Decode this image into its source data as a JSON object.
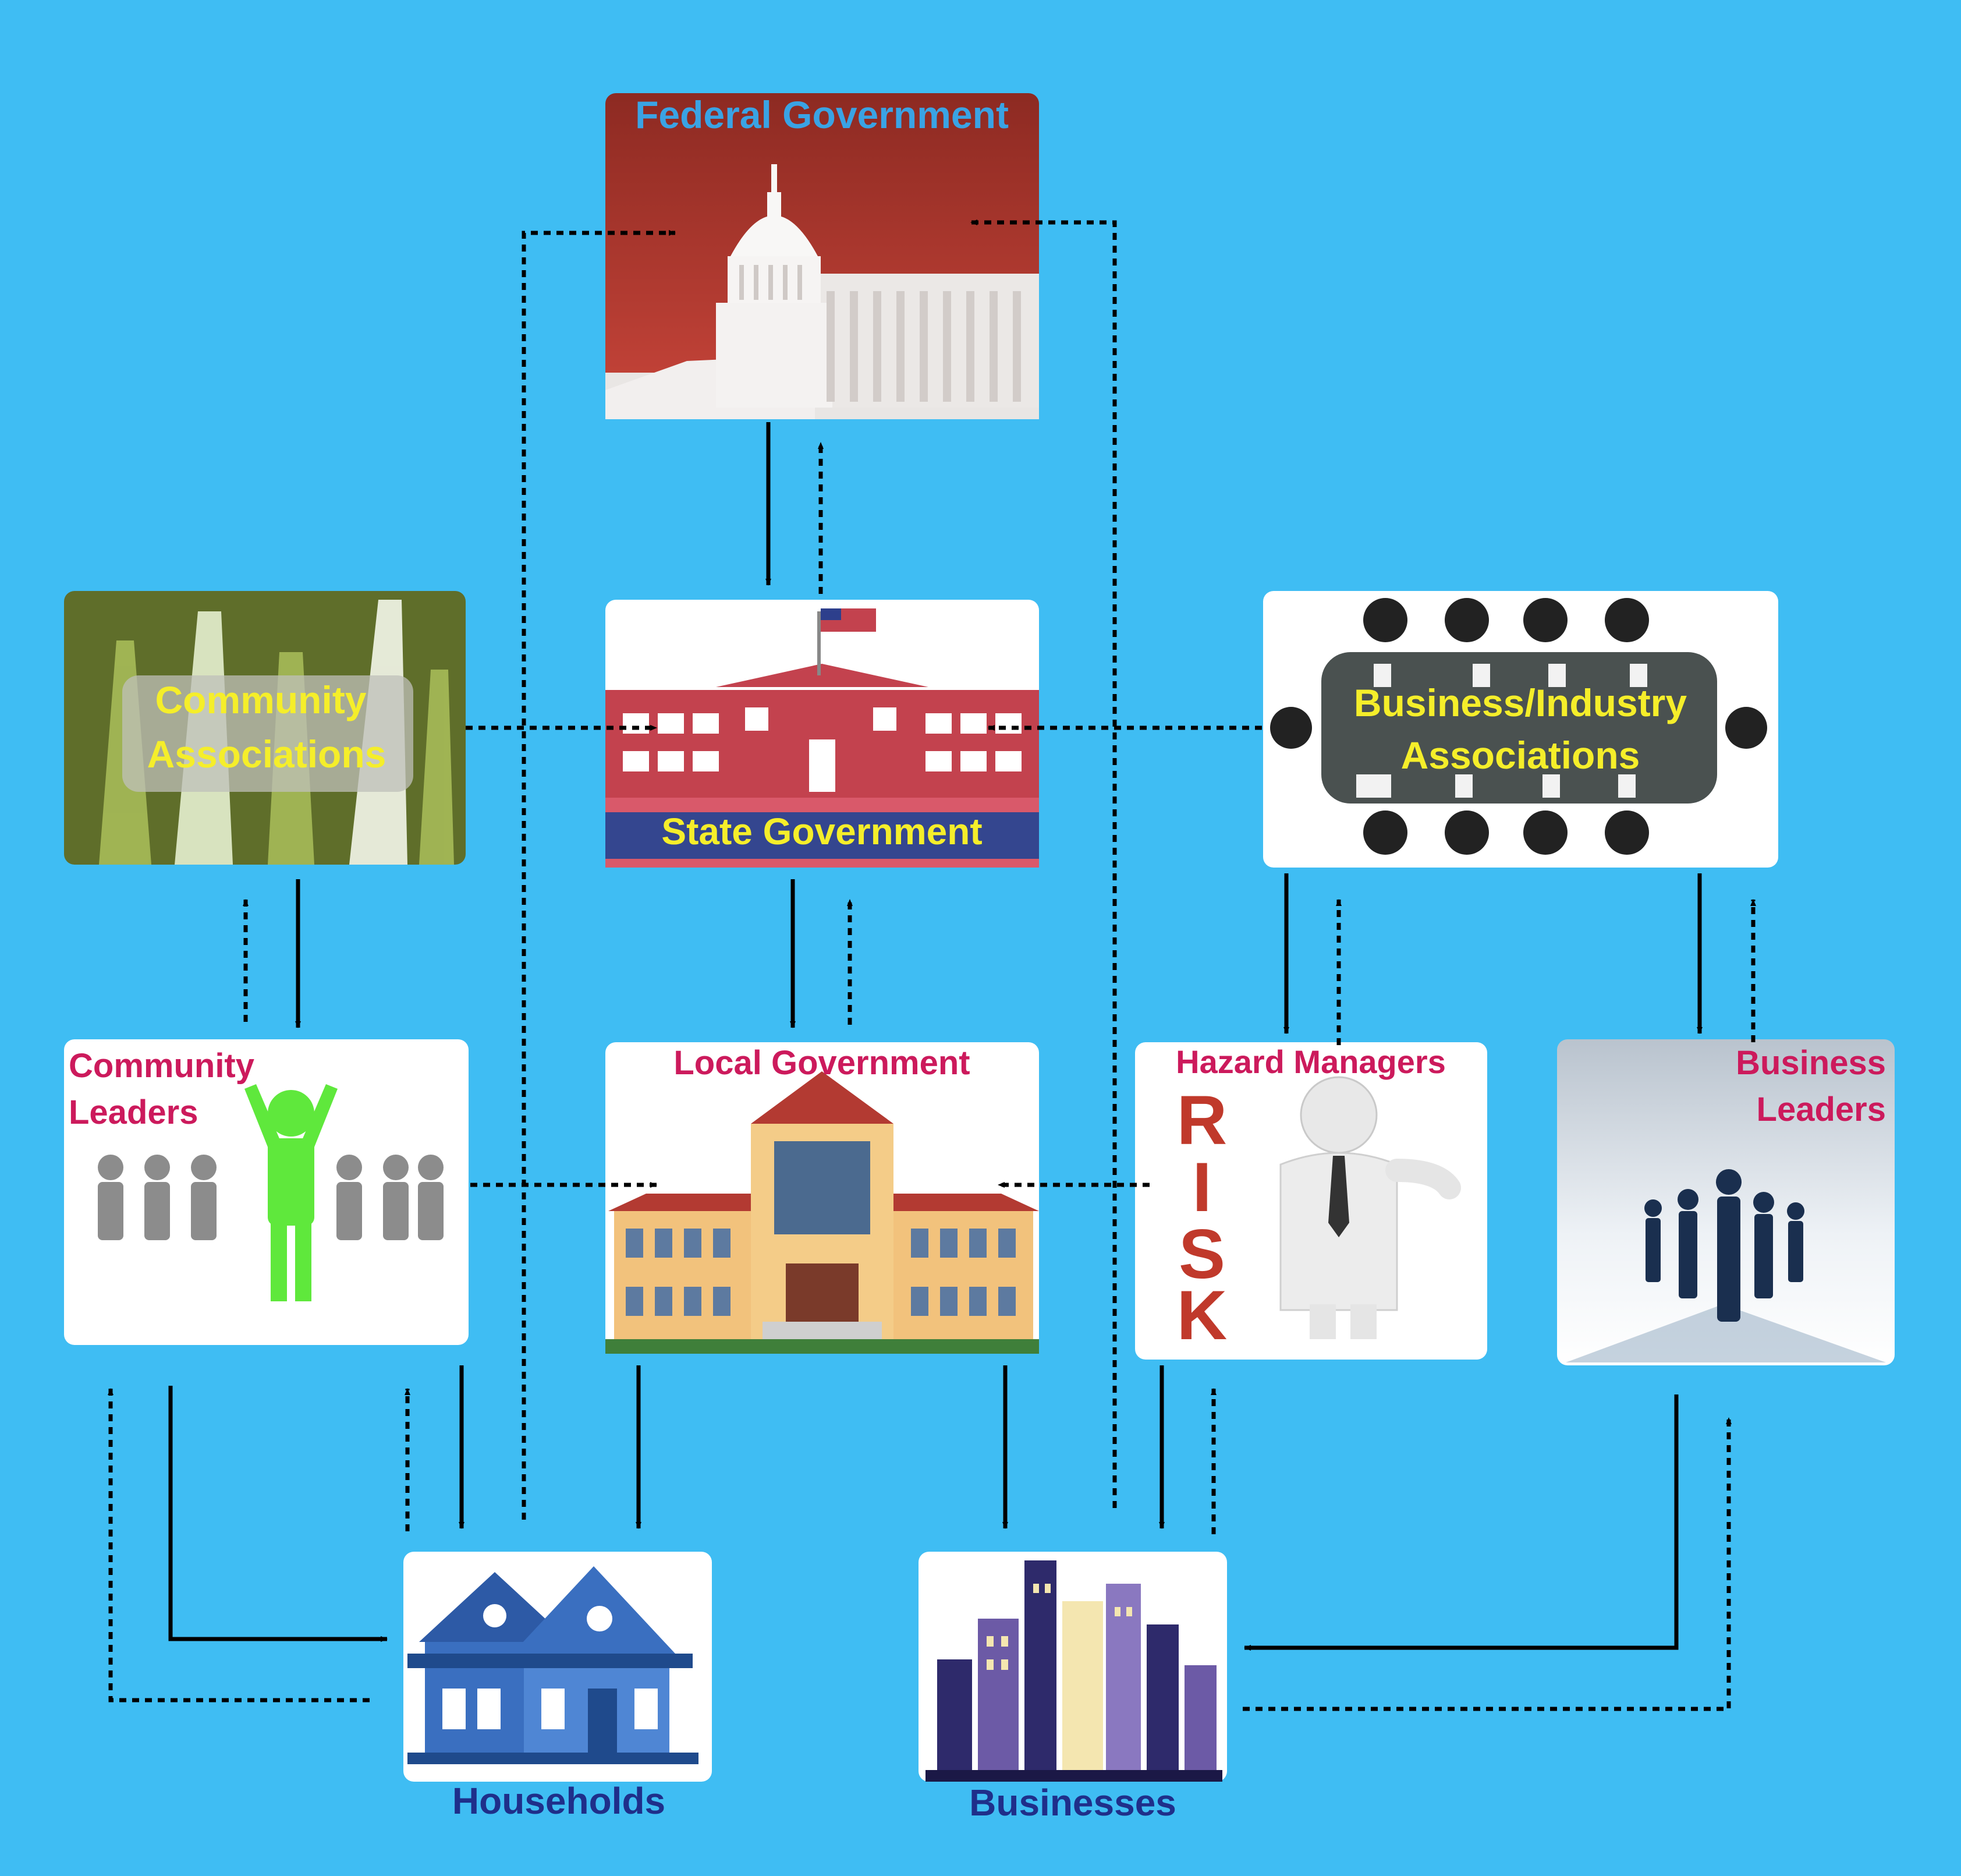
{
  "nodes": {
    "federal_government": {
      "label": "Federal Government"
    },
    "state_government": {
      "label": "State Government"
    },
    "community_associations": {
      "line1": "Community",
      "line2": "Associations"
    },
    "business_industry_associations": {
      "line1": "Business/Industry",
      "line2": "Associations"
    },
    "community_leaders": {
      "line1": "Community",
      "line2": "Leaders"
    },
    "local_government": {
      "label": "Local Government"
    },
    "hazard_managers": {
      "label": "Hazard Managers",
      "risk_word": "RISK"
    },
    "business_leaders": {
      "line1": "Business",
      "line2": "Leaders"
    },
    "households": {
      "label": "Households"
    },
    "businesses": {
      "label": "Businesses"
    }
  },
  "colors": {
    "background": "#3fbdf3",
    "label_yellow": "#f5ee2a",
    "label_magenta": "#cc1a5c",
    "label_navy": "#1f2f8a",
    "label_lightblue": "#3aa3e4",
    "arrow": "#000000"
  },
  "legend": {
    "solid_arrow": "solid line",
    "dotted_arrow": "dotted line"
  }
}
